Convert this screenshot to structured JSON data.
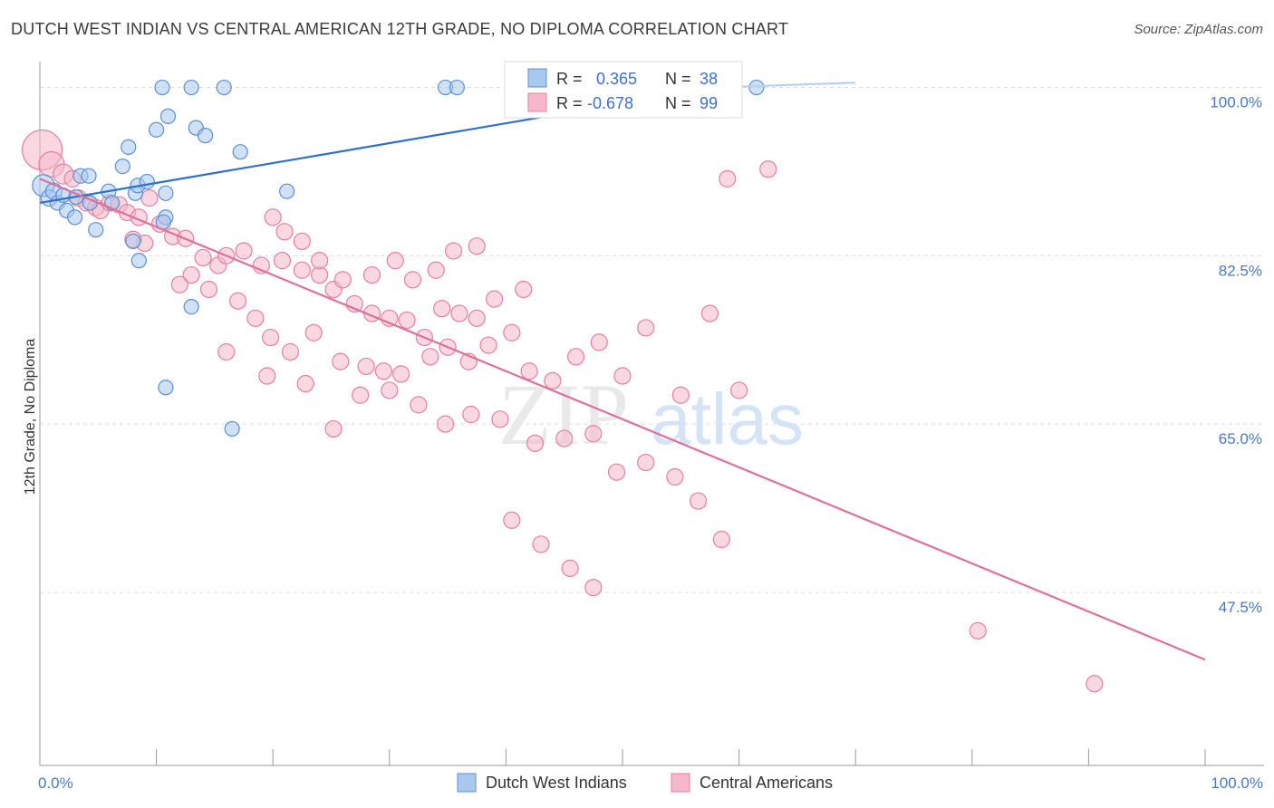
{
  "title": "DUTCH WEST INDIAN VS CENTRAL AMERICAN 12TH GRADE, NO DIPLOMA CORRELATION CHART",
  "source": "Source: ZipAtlas.com",
  "watermark": {
    "zip": "ZIP",
    "atlas": "atlas"
  },
  "colors": {
    "blue_fill": "#a9c8ef",
    "blue_stroke": "#5b8fd6",
    "blue_line": "#2f6fd0",
    "pink_fill": "#f5b8cb",
    "pink_stroke": "#e67fa0",
    "pink_line": "#e0709a",
    "grid": "#dcdcdc",
    "axis": "#999999",
    "tick_text": "#4a78c8"
  },
  "legend": {
    "rows": [
      {
        "r_label": "R =",
        "r_value": "0.365",
        "n_label": "N =",
        "n_value": "38"
      },
      {
        "r_label": "R =",
        "r_value": "-0.678",
        "n_label": "N =",
        "n_value": "99"
      }
    ]
  },
  "chart_data": {
    "type": "scatter",
    "xlabel": "",
    "ylabel": "12th Grade, No Diploma",
    "xlim": [
      0,
      100
    ],
    "ylim": [
      29.5,
      102.5
    ],
    "x_tick_labels": [
      {
        "value": 0,
        "label": "0.0%"
      },
      {
        "value": 100,
        "label": "100.0%"
      }
    ],
    "y_tick_labels": [
      {
        "value": 100,
        "label": "100.0%"
      },
      {
        "value": 82.5,
        "label": "82.5%"
      },
      {
        "value": 65,
        "label": "65.0%"
      },
      {
        "value": 47.5,
        "label": "47.5%"
      }
    ],
    "x_minor_ticks": [
      10,
      20,
      30,
      40,
      50,
      60,
      70,
      80,
      90,
      100
    ],
    "grid": true,
    "legend_position": "top-center",
    "series": [
      {
        "name": "Dutch West Indians",
        "color": "blue",
        "trend": {
          "x": [
            0,
            58
          ],
          "y": [
            88.0,
            100.0
          ]
        },
        "points": [
          [
            0.3,
            89.8,
            12
          ],
          [
            0.8,
            88.5,
            9
          ],
          [
            1.2,
            89.2,
            9
          ],
          [
            1.5,
            88.0,
            8
          ],
          [
            2.0,
            88.8,
            8
          ],
          [
            2.3,
            87.2,
            8
          ],
          [
            3.1,
            88.6,
            8
          ],
          [
            3.5,
            90.8,
            8
          ],
          [
            4.2,
            90.8,
            8
          ],
          [
            4.8,
            85.2,
            8
          ],
          [
            4.3,
            88.0,
            8
          ],
          [
            3.0,
            86.5,
            8
          ],
          [
            5.9,
            89.2,
            8
          ],
          [
            6.2,
            88.0,
            8
          ],
          [
            7.1,
            91.8,
            8
          ],
          [
            7.6,
            93.8,
            8
          ],
          [
            8.2,
            89.0,
            8
          ],
          [
            8.4,
            89.8,
            8
          ],
          [
            9.2,
            90.2,
            8
          ],
          [
            10.0,
            95.6,
            8
          ],
          [
            11.0,
            97.0,
            8
          ],
          [
            8.0,
            84.0,
            8
          ],
          [
            8.5,
            82.0,
            8
          ],
          [
            10.8,
            89.0,
            8
          ],
          [
            10.8,
            86.5,
            8
          ],
          [
            10.6,
            86.0,
            8
          ],
          [
            10.5,
            100.0,
            8
          ],
          [
            13.0,
            100.0,
            8
          ],
          [
            15.8,
            100.0,
            8
          ],
          [
            13.4,
            95.8,
            8
          ],
          [
            14.2,
            95.0,
            8
          ],
          [
            17.2,
            93.3,
            8
          ],
          [
            21.2,
            89.2,
            8
          ],
          [
            13.0,
            77.2,
            8
          ],
          [
            10.8,
            68.8,
            8
          ],
          [
            16.5,
            64.5,
            8
          ],
          [
            34.8,
            100.0,
            8
          ],
          [
            35.8,
            100.0,
            8
          ],
          [
            61.5,
            100.0,
            8
          ]
        ]
      },
      {
        "name": "Central Americans",
        "color": "pink",
        "trend": {
          "x": [
            0,
            100
          ],
          "y": [
            90.5,
            40.5
          ]
        },
        "points": [
          [
            0.2,
            93.5,
            22
          ],
          [
            1.0,
            92.0,
            14
          ],
          [
            2.0,
            91.0,
            11
          ],
          [
            2.8,
            90.5,
            9
          ],
          [
            3.3,
            88.5,
            9
          ],
          [
            4.0,
            88.0,
            9
          ],
          [
            4.8,
            87.5,
            9
          ],
          [
            5.2,
            87.2,
            9
          ],
          [
            6.0,
            88.0,
            9
          ],
          [
            6.8,
            87.8,
            9
          ],
          [
            7.5,
            87.0,
            9
          ],
          [
            8.5,
            86.5,
            9
          ],
          [
            9.4,
            88.5,
            9
          ],
          [
            10.3,
            85.8,
            9
          ],
          [
            11.4,
            84.5,
            9
          ],
          [
            12.5,
            84.3,
            9
          ],
          [
            9.0,
            83.8,
            9
          ],
          [
            8.0,
            84.2,
            9
          ],
          [
            14.0,
            82.3,
            9
          ],
          [
            15.3,
            81.5,
            9
          ],
          [
            16.0,
            82.5,
            9
          ],
          [
            17.5,
            83.0,
            9
          ],
          [
            19.0,
            81.5,
            9
          ],
          [
            20.8,
            82.0,
            9
          ],
          [
            22.5,
            81.0,
            9
          ],
          [
            24.0,
            80.5,
            9
          ],
          [
            25.2,
            79.0,
            9
          ],
          [
            27.0,
            77.5,
            9
          ],
          [
            28.5,
            76.5,
            9
          ],
          [
            30.0,
            76.0,
            9
          ],
          [
            31.5,
            75.8,
            9
          ],
          [
            33.0,
            74.0,
            9
          ],
          [
            34.5,
            77.0,
            9
          ],
          [
            36.0,
            76.5,
            9
          ],
          [
            37.5,
            76.0,
            9
          ],
          [
            13.0,
            80.5,
            9
          ],
          [
            12.0,
            79.5,
            9
          ],
          [
            14.5,
            79.0,
            9
          ],
          [
            17.0,
            77.8,
            9
          ],
          [
            18.5,
            76.0,
            9
          ],
          [
            19.8,
            74.0,
            9
          ],
          [
            21.5,
            72.5,
            9
          ],
          [
            23.5,
            74.5,
            9
          ],
          [
            25.8,
            71.5,
            9
          ],
          [
            28.0,
            71.0,
            9
          ],
          [
            29.5,
            70.5,
            9
          ],
          [
            31.0,
            70.2,
            9
          ],
          [
            33.5,
            72.0,
            9
          ],
          [
            35.0,
            73.0,
            9
          ],
          [
            36.8,
            71.5,
            9
          ],
          [
            38.5,
            73.2,
            9
          ],
          [
            40.5,
            74.5,
            9
          ],
          [
            42.0,
            70.5,
            9
          ],
          [
            44.0,
            69.5,
            9
          ],
          [
            46.0,
            72.0,
            9
          ],
          [
            39.0,
            78.0,
            9
          ],
          [
            41.5,
            79.0,
            9
          ],
          [
            48.0,
            73.5,
            9
          ],
          [
            50.0,
            70.0,
            9
          ],
          [
            52.0,
            75.0,
            9
          ],
          [
            55.0,
            68.0,
            9
          ],
          [
            57.5,
            76.5,
            9
          ],
          [
            60.0,
            68.5,
            9
          ],
          [
            20.0,
            86.5,
            9
          ],
          [
            21.0,
            85.0,
            9
          ],
          [
            22.5,
            84.0,
            9
          ],
          [
            24.0,
            82.0,
            9
          ],
          [
            26.0,
            80.0,
            9
          ],
          [
            28.5,
            80.5,
            9
          ],
          [
            30.5,
            82.0,
            9
          ],
          [
            32.0,
            80.0,
            9
          ],
          [
            34.0,
            81.0,
            9
          ],
          [
            35.5,
            83.0,
            9
          ],
          [
            37.5,
            83.5,
            9
          ],
          [
            19.5,
            70.0,
            9
          ],
          [
            16.0,
            72.5,
            9
          ],
          [
            22.8,
            69.2,
            9
          ],
          [
            25.2,
            64.5,
            9
          ],
          [
            27.5,
            68.0,
            9
          ],
          [
            30.0,
            68.5,
            9
          ],
          [
            32.5,
            67.0,
            9
          ],
          [
            34.8,
            65.0,
            9
          ],
          [
            37.0,
            66.0,
            9
          ],
          [
            39.5,
            65.5,
            9
          ],
          [
            42.5,
            63.0,
            9
          ],
          [
            45.0,
            63.5,
            9
          ],
          [
            47.5,
            64.0,
            9
          ],
          [
            49.5,
            60.0,
            9
          ],
          [
            52.0,
            61.0,
            9
          ],
          [
            54.5,
            59.5,
            9
          ],
          [
            56.5,
            57.0,
            9
          ],
          [
            58.5,
            53.0,
            9
          ],
          [
            40.5,
            55.0,
            9
          ],
          [
            43.0,
            52.5,
            9
          ],
          [
            45.5,
            50.0,
            9
          ],
          [
            47.5,
            48.0,
            9
          ],
          [
            59.0,
            90.5,
            9
          ],
          [
            62.5,
            91.5,
            9
          ],
          [
            80.5,
            43.5,
            9
          ],
          [
            90.5,
            38.0,
            9
          ]
        ]
      }
    ]
  },
  "bottom_legend": [
    {
      "label": "Dutch West Indians",
      "color": "blue"
    },
    {
      "label": "Central Americans",
      "color": "pink"
    }
  ]
}
